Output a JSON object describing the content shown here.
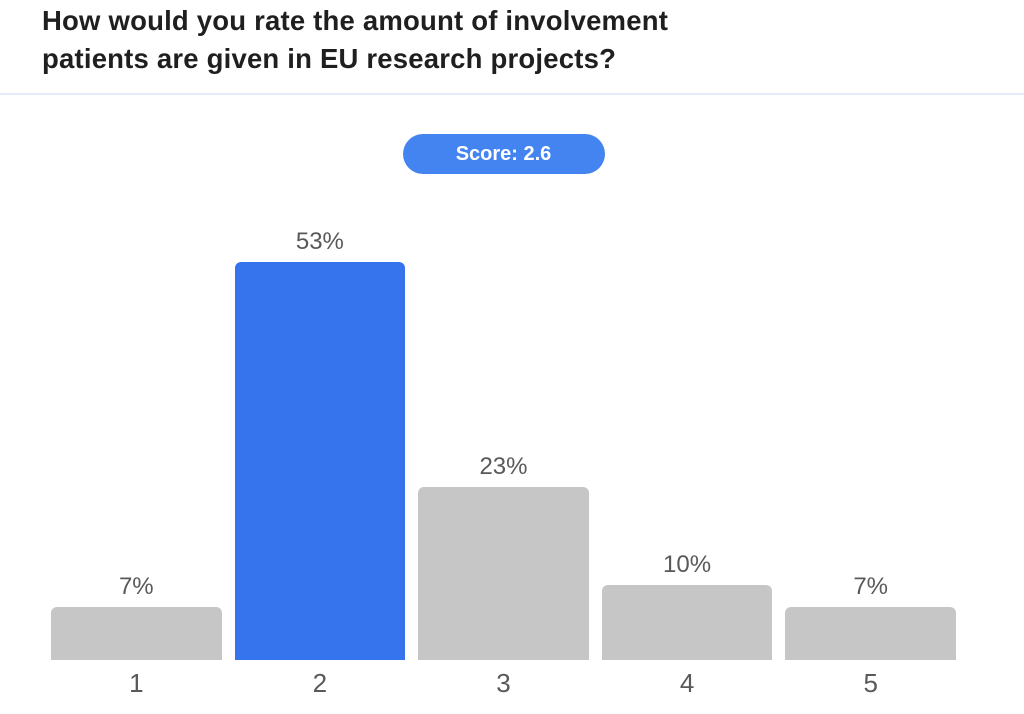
{
  "header": {
    "title": "How would you rate the amount of involvement patients are given in EU research projects?",
    "title_lines": [
      "How would you rate the amount of involvement",
      "patients are given in EU research projects?"
    ]
  },
  "score": {
    "label": "Score: 2.6",
    "value": 2.6
  },
  "colors": {
    "title_text": "#1f1f1f",
    "divider": "#e4ecf8",
    "badge_bg": "#4484f0",
    "badge_text": "#ffffff",
    "bar_highlight": "#3674ee",
    "bar_default": "#c6c6c6",
    "label_gray": "#58595b"
  },
  "chart_data": {
    "type": "bar",
    "title": "How would you rate the amount of involvement patients are given in EU research projects?",
    "categories": [
      "1",
      "2",
      "3",
      "4",
      "5"
    ],
    "values": [
      7,
      53,
      23,
      10,
      7
    ],
    "value_labels": [
      "7%",
      "53%",
      "23%",
      "10%",
      "7%"
    ],
    "unit": "%",
    "highlighted_index": 1,
    "xlabel": "",
    "ylabel": "",
    "ylim": [
      0,
      53
    ],
    "grid": false,
    "legend": false
  }
}
